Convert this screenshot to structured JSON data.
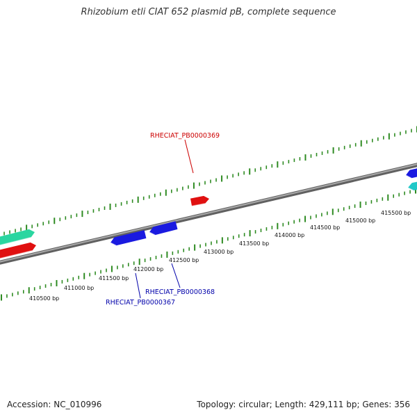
{
  "title": "Rhizobium etli CIAT 652 plasmid pB, complete sequence",
  "scale_labels": [
    "410500 bp",
    "411000 bp",
    "411500 bp",
    "412000 bp",
    "412500 bp",
    "413000 bp",
    "413500 bp",
    "414000 bp",
    "414500 bp",
    "415000 bp",
    "415500 bp"
  ],
  "gene_labels": [
    {
      "text": "RHECIAT_PB0000369",
      "strand": "forward"
    },
    {
      "text": "RHECIAT_PB0000368",
      "strand": "reverse"
    },
    {
      "text": "RHECIAT_PB0000367",
      "strand": "reverse"
    }
  ],
  "footer": {
    "accession": "Accession: NC_010996",
    "summary": "Topology: circular; Length: 429,111 bp; Genes: 356"
  },
  "colors": {
    "backbone": "#808080",
    "ticks": "#2e8b22",
    "forward_gene": "#e01010",
    "reverse_gene": "#1a1ae0",
    "forward_label": "#cc0000",
    "reverse_label": "#0000aa",
    "teal_feature": "#2ad6a0",
    "cyan_feature": "#20c8c8"
  }
}
